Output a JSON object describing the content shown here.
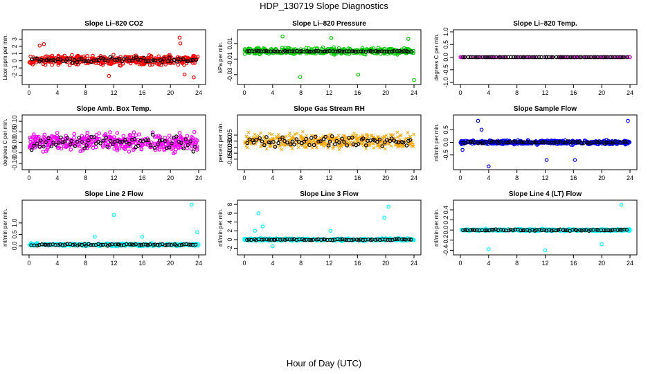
{
  "figure": {
    "title": "HDP_130719  Slope Diagnostics",
    "xlabel": "Hour of Day (UTC)"
  },
  "chart_data": [
    {
      "type": "scatter",
      "title": "Slope Li–820 CO2",
      "ylabel": "Licor ppm per min.",
      "color": "#ff0000",
      "symbol": "circle",
      "xlim": [
        0,
        24
      ],
      "xticks": [
        0,
        4,
        8,
        12,
        16,
        20,
        24
      ],
      "ylim": [
        -3,
        4
      ],
      "yticks": [
        -2,
        -1,
        0,
        1,
        2,
        3
      ],
      "series": {
        "center": 0.1,
        "main_spread": 0.9,
        "ref_spread": 0.5,
        "outliers": [
          [
            1.5,
            2.1
          ],
          [
            2.1,
            2.3
          ],
          [
            11.3,
            -2.1
          ],
          [
            21.3,
            3.2
          ],
          [
            21.4,
            2.4
          ],
          [
            23.3,
            -2.3
          ],
          [
            22.0,
            -1.9
          ]
        ]
      }
    },
    {
      "type": "scatter",
      "title": "Slope Li–820 Pressure",
      "ylabel": "kPa per min.",
      "color": "#00cc00",
      "symbol": "circle",
      "xlim": [
        0,
        24
      ],
      "xticks": [
        0,
        4,
        8,
        12,
        16,
        20,
        24
      ],
      "ylim": [
        -0.04,
        0.025
      ],
      "yticks": [
        -0.03,
        -0.01,
        0.01
      ],
      "series": {
        "center": 0.0,
        "main_spread": 0.006,
        "ref_spread": 0.001,
        "outliers": [
          [
            7.9,
            -0.033
          ],
          [
            16.1,
            -0.03
          ],
          [
            24,
            -0.037
          ],
          [
            23.2,
            0.016
          ],
          [
            12.3,
            0.017
          ],
          [
            5.4,
            0.019
          ]
        ]
      }
    },
    {
      "type": "scatter",
      "title": "Slope Li–820 Temp.",
      "ylabel": "degrees C per min.",
      "color": "#cc00cc",
      "symbol": "circle",
      "xlim": [
        0,
        24
      ],
      "xticks": [
        0,
        4,
        8,
        12,
        16,
        20,
        24
      ],
      "ylim": [
        -1.0,
        1.0
      ],
      "yticks": [
        -1.0,
        -0.5,
        0.0,
        0.5,
        1.0
      ],
      "series": {
        "center": 0.0,
        "main_spread": 0.0,
        "ref_spread": 0.0,
        "outliers": []
      }
    },
    {
      "type": "scatter",
      "title": "Slope Amb. Box Temp.",
      "ylabel": "degrees C per min.",
      "color": "#ff00ff",
      "symbol": "circle",
      "xlim": [
        0,
        24
      ],
      "xticks": [
        0,
        4,
        8,
        12,
        16,
        20,
        24
      ],
      "ylim": [
        -0.12,
        0.12
      ],
      "yticks": [
        -0.1,
        -0.05,
        0.0,
        0.05,
        0.1
      ],
      "series": {
        "center": 0.0,
        "main_spread": 0.06,
        "ref_spread": 0.05,
        "outliers": []
      }
    },
    {
      "type": "scatter",
      "title": "Slope Gas Stream RH",
      "ylabel": "percent per min.",
      "color": "#ffa500",
      "symbol": "cross",
      "xlim": [
        0,
        24
      ],
      "xticks": [
        0,
        4,
        8,
        12,
        16,
        20,
        24
      ],
      "ylim": [
        -0.22,
        0.2
      ],
      "yticks": [
        -0.15,
        -0.1,
        -0.05,
        0.0,
        0.05
      ],
      "series": {
        "center": 0.0,
        "main_spread": 0.09,
        "ref_spread": 0.06,
        "outliers": []
      }
    },
    {
      "type": "scatter",
      "title": "Slope Sample Flow",
      "ylabel": "ml/min per min.",
      "color": "#0000ff",
      "symbol": "circle",
      "xlim": [
        0,
        24
      ],
      "xticks": [
        0,
        4,
        8,
        12,
        16,
        20,
        24
      ],
      "ylim": [
        -1.0,
        1.0
      ],
      "yticks": [
        -0.5,
        0.0,
        0.5
      ],
      "series": {
        "center": 0.0,
        "main_spread": 0.12,
        "ref_spread": 0.05,
        "outliers": [
          [
            2.5,
            0.85
          ],
          [
            4.0,
            -0.95
          ],
          [
            12.2,
            -0.7
          ],
          [
            16.2,
            -0.7
          ],
          [
            23.7,
            0.85
          ],
          [
            3.0,
            0.5
          ],
          [
            0.3,
            -0.3
          ]
        ]
      }
    },
    {
      "type": "scatter",
      "title": "Slope Line 2 Flow",
      "ylabel": "ml/min per min.",
      "color": "#00ffff",
      "symbol": "circle",
      "xlim": [
        0,
        24
      ],
      "xticks": [
        0,
        4,
        8,
        12,
        16,
        20,
        24
      ],
      "ylim": [
        -0.3,
        1.9
      ],
      "yticks": [
        0.0,
        0.5,
        1.0
      ],
      "series": {
        "center": 0.05,
        "main_spread": 0.08,
        "ref_spread": 0.05,
        "outliers": [
          [
            9.3,
            0.4
          ],
          [
            12.0,
            1.35
          ],
          [
            23.0,
            1.8
          ],
          [
            23.8,
            0.6
          ],
          [
            16.0,
            0.4
          ]
        ]
      }
    },
    {
      "type": "scatter",
      "title": "Slope Line 3 Flow",
      "ylabel": "ml/min per min.",
      "color": "#00ffff",
      "symbol": "circle",
      "xlim": [
        0,
        24
      ],
      "xticks": [
        0,
        4,
        8,
        12,
        16,
        20,
        24
      ],
      "ylim": [
        -3,
        8.5
      ],
      "yticks": [
        -2,
        0,
        2,
        4,
        6,
        8
      ],
      "series": {
        "center": 0.0,
        "main_spread": 0.4,
        "ref_spread": 0.2,
        "outliers": [
          [
            2.0,
            6.0
          ],
          [
            2.6,
            3.0
          ],
          [
            1.5,
            2.0
          ],
          [
            4.0,
            -1.5
          ],
          [
            12.2,
            2.0
          ],
          [
            20.4,
            7.5
          ],
          [
            19.8,
            5.0
          ]
        ]
      }
    },
    {
      "type": "scatter",
      "title": "Slope Line 4 (LT) Flow",
      "ylabel": "ml/min per min.",
      "color": "#00ffff",
      "symbol": "circle",
      "xlim": [
        0,
        24
      ],
      "xticks": [
        0,
        4,
        8,
        12,
        16,
        20,
        24
      ],
      "ylim": [
        -0.45,
        0.55
      ],
      "yticks": [
        -0.4,
        -0.2,
        0.0,
        0.2,
        0.4
      ],
      "series": {
        "center": 0.0,
        "main_spread": 0.03,
        "ref_spread": 0.02,
        "outliers": [
          [
            4.0,
            -0.38
          ],
          [
            12.0,
            -0.4
          ],
          [
            20.0,
            -0.28
          ],
          [
            22.8,
            0.5
          ]
        ]
      }
    }
  ]
}
